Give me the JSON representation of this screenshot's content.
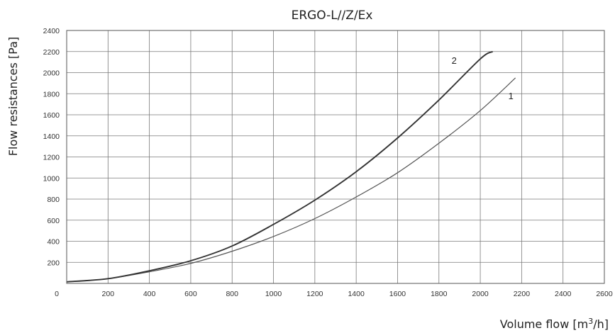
{
  "chart_data": {
    "type": "line",
    "title": "ERGO-L//Z/Ex",
    "xlabel_main": "Volume flow [m",
    "xlabel_sup": "3",
    "xlabel_end": "/h]",
    "ylabel": "Flow resistances [Pa]",
    "xlim": [
      0,
      2600
    ],
    "ylim": [
      0,
      2400
    ],
    "xticks": [
      "0",
      "200",
      "400",
      "600",
      "800",
      "1000",
      "1200",
      "1400",
      "1600",
      "1800",
      "2000",
      "2200",
      "2400",
      "2600"
    ],
    "yticks": [
      "200",
      "400",
      "600",
      "800",
      "1000",
      "1200",
      "1400",
      "1600",
      "1800",
      "2000",
      "2200",
      "2400"
    ],
    "grid": true,
    "series": [
      {
        "name": "1",
        "color": "#555555",
        "x": [
          0,
          200,
          400,
          600,
          800,
          1000,
          1200,
          1400,
          1600,
          1800,
          2000,
          2170
        ],
        "y": [
          15,
          45,
          110,
          190,
          305,
          445,
          615,
          820,
          1050,
          1330,
          1640,
          1950
        ]
      },
      {
        "name": "2",
        "color": "#333333",
        "x": [
          0,
          200,
          400,
          600,
          800,
          1000,
          1200,
          1400,
          1600,
          1800,
          2000,
          2060
        ],
        "y": [
          15,
          45,
          120,
          215,
          355,
          560,
          790,
          1060,
          1380,
          1740,
          2130,
          2200
        ]
      }
    ]
  }
}
